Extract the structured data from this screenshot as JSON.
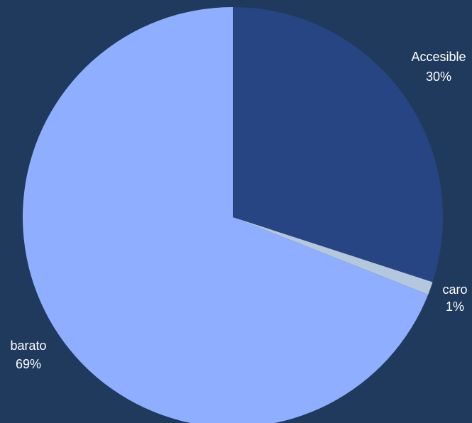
{
  "chart_data": {
    "type": "pie",
    "slices": [
      {
        "label": "Accesible",
        "value": 30,
        "value_label": "30%",
        "color": "#264582"
      },
      {
        "label": "caro",
        "value": 1,
        "value_label": "1%",
        "color": "#b4c7dc"
      },
      {
        "label": "barato",
        "value": 69,
        "value_label": "69%",
        "color": "#8faeff"
      }
    ],
    "start": "12 o'clock",
    "direction": "clockwise",
    "background": "#1f3a5c"
  }
}
